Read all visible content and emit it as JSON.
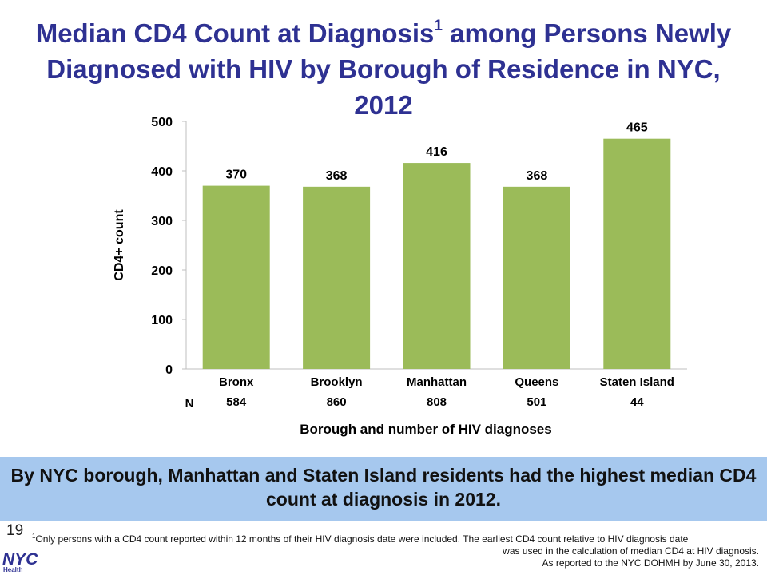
{
  "slide": {
    "title_main": "Median CD4 Count at Diagnosis",
    "title_sup": "1",
    "title_rest": " among Persons Newly Diagnosed with HIV by Borough of Residence in NYC, 2012",
    "callout": "By NYC borough, Manhattan and Staten Island residents had the highest median CD4 count at diagnosis in 2012.",
    "slide_number": "19",
    "footnote_marker": "1",
    "footnote_line1": "Only persons with a CD4 count reported within 12 months of their HIV diagnosis date were included. The earliest CD4 count relative to HIV diagnosis date",
    "footnote_line2": "was used in the calculation of median CD4 at HIV diagnosis.",
    "footnote_line3": "As reported to the NYC DOHMH by June 30, 2013.",
    "logo_text": "NYC",
    "logo_subtext": "Health"
  },
  "chart_data": {
    "type": "bar",
    "title": "Median CD4 Count at Diagnosis among Persons Newly Diagnosed with HIV by Borough of Residence in NYC, 2012",
    "categories": [
      "Bronx",
      "Brooklyn",
      "Manhattan",
      "Queens",
      "Staten Island"
    ],
    "values": [
      370,
      368,
      416,
      368,
      465
    ],
    "n_label": "N",
    "n_values": [
      "584",
      "860",
      "808",
      "501",
      "44"
    ],
    "xlabel": "Borough and number of HIV diagnoses",
    "ylabel": "CD4+ count",
    "ylim": [
      0,
      500
    ],
    "yticks": [
      0,
      100,
      200,
      300,
      400,
      500
    ],
    "grid": false,
    "bar_color": "#9bbb59",
    "axis_color": "#bfbfbf"
  }
}
